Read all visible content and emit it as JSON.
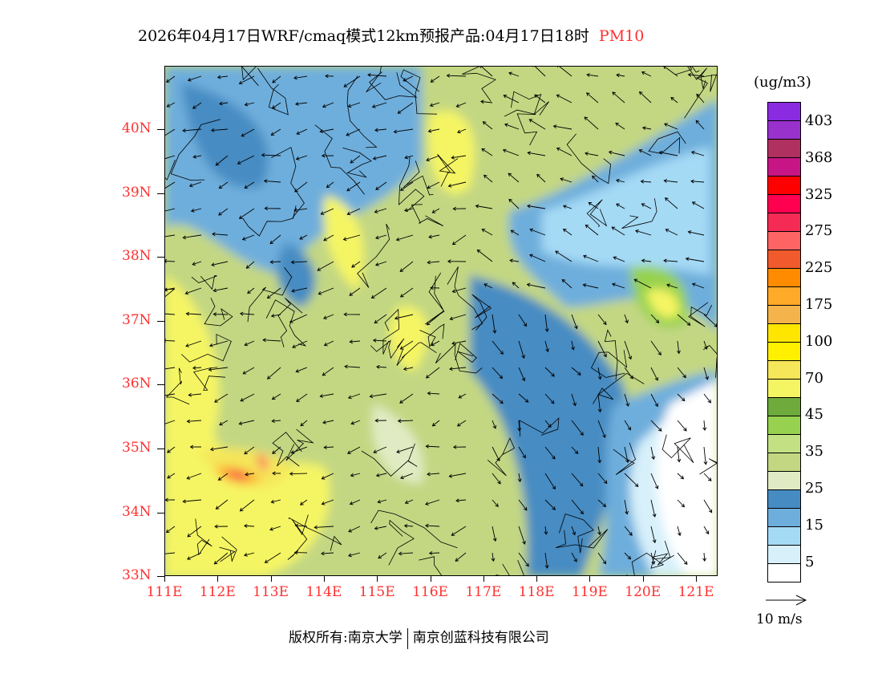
{
  "title": {
    "text": "2026年04月17日WRF/cmaq模式12km预报产品:04月17日18时",
    "pollutant": "PM10"
  },
  "map": {
    "lat_labels": [
      "40N",
      "39N",
      "38N",
      "37N",
      "36N",
      "35N",
      "34N",
      "33N"
    ],
    "lon_labels": [
      "111E",
      "112E",
      "113E",
      "114E",
      "115E",
      "116E",
      "117E",
      "118E",
      "119E",
      "120E",
      "121E"
    ]
  },
  "legend": {
    "units": "(ug/m3)",
    "colors": [
      "#8a2be2",
      "#9932cc",
      "#b03060",
      "#c71585",
      "#ff0000",
      "#ff0050",
      "#f52b55",
      "#ff6464",
      "#f05a2d",
      "#ff8c00",
      "#ffaa28",
      "#f5b44b",
      "#ffe600",
      "#fff000",
      "#f5e65a",
      "#f5f564",
      "#6eaa3c",
      "#96d250",
      "#c3e182",
      "#c3d782",
      "#e1ebc3",
      "#468cc3",
      "#6eaedc",
      "#a5daf5",
      "#d7f0fa",
      "#ffffff"
    ],
    "labels": [
      "403",
      "368",
      "325",
      "275",
      "225",
      "175",
      "100",
      "70",
      "45",
      "35",
      "25",
      "15",
      "5"
    ]
  },
  "wind_vector": {
    "label": "10 m/s"
  },
  "footer": {
    "left": "版权所有:南京大学",
    "right": "南京创蓝科技有限公司"
  }
}
